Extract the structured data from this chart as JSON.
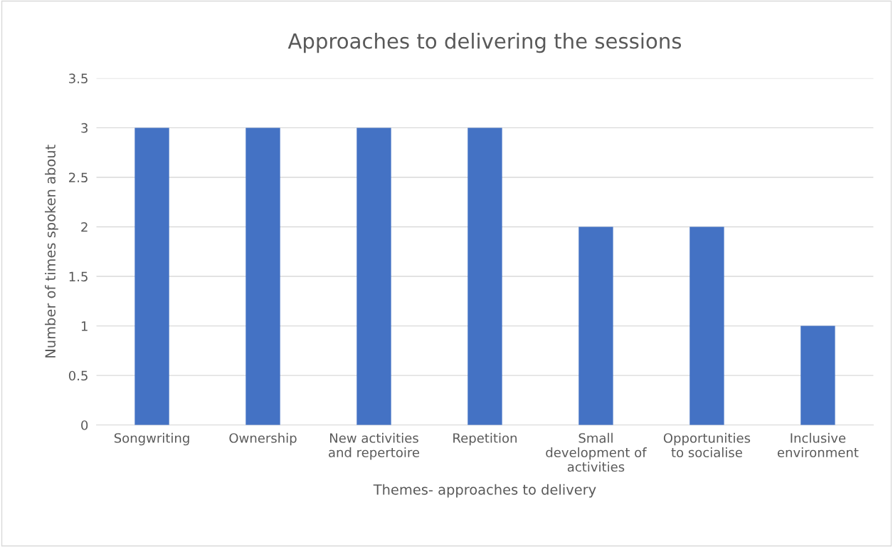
{
  "chart_data": {
    "type": "bar",
    "title": "Approaches to delivering the sessions",
    "xlabel": "Themes- approaches to delivery",
    "ylabel": "Number of times spoken about",
    "categories": [
      "Songwriting",
      "Ownership",
      "New activities and repertoire",
      "Repetition",
      "Small development of activities",
      "Opportunities to socialise",
      "Inclusive environment"
    ],
    "values": [
      3,
      3,
      3,
      3,
      2,
      2,
      1
    ],
    "color": "#4472c4",
    "ylim": [
      0,
      3.5
    ],
    "yticks": [
      0,
      0.5,
      1,
      1.5,
      2,
      2.5,
      3,
      3.5
    ],
    "grid": "y"
  }
}
